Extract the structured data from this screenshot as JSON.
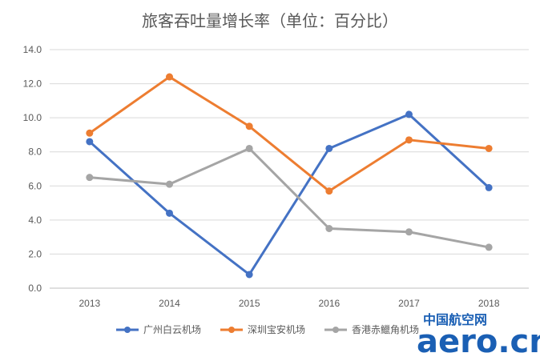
{
  "chart_data": {
    "type": "line",
    "title": "旅客吞吐量增长率（单位：百分比）",
    "categories": [
      "2013",
      "2014",
      "2015",
      "2016",
      "2017",
      "2018"
    ],
    "y_ticks": [
      "0.0",
      "2.0",
      "4.0",
      "6.0",
      "8.0",
      "10.0",
      "12.0",
      "14.0"
    ],
    "ylim": [
      0,
      14
    ],
    "grid": true,
    "legend_position": "bottom",
    "series": [
      {
        "name": "广州白云机场",
        "color": "#4472c4",
        "values": [
          8.6,
          4.4,
          0.8,
          8.2,
          10.2,
          5.9
        ]
      },
      {
        "name": "深圳宝安机场",
        "color": "#ed7d31",
        "values": [
          9.1,
          12.4,
          9.5,
          5.7,
          8.7,
          8.2
        ]
      },
      {
        "name": "香港赤鱲角机场",
        "color": "#a5a5a5",
        "values": [
          6.5,
          6.1,
          8.2,
          3.5,
          3.3,
          2.4
        ]
      }
    ]
  },
  "watermark": {
    "cn": "中国航空网",
    "en": "aero.cn"
  }
}
